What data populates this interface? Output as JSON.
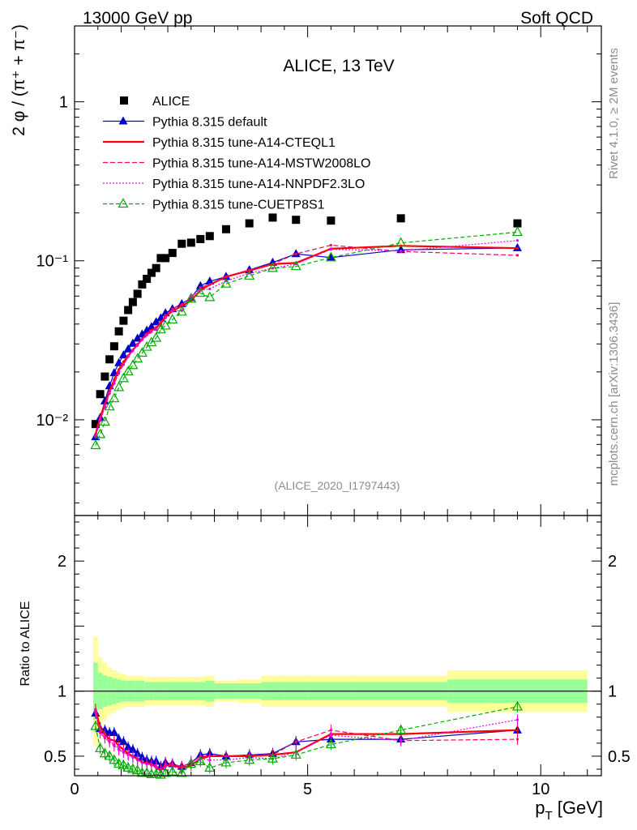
{
  "header": {
    "left": "13000 GeV pp",
    "right": "Soft QCD",
    "side_top": "Rivet 4.1.0, ≥ 2M events",
    "side_bottom": "mcplots.cern.ch [arXiv:1306.3436]"
  },
  "chart_data": [
    {
      "type": "scatter",
      "panel": "main",
      "title": "ALICE, 13 TeV",
      "watermark": "(ALICE_2020_I1797443)",
      "ylabel": "2 φ / (π⁺ + π⁻)",
      "yscale": "log",
      "ylim": [
        0.0025,
        3.0
      ],
      "xlim": [
        0,
        11.3
      ],
      "yticks": [
        {
          "value": 0.01,
          "label": "10⁻²"
        },
        {
          "value": 0.1,
          "label": "10⁻¹"
        },
        {
          "value": 1,
          "label": "1"
        }
      ],
      "legend_position": "top-left",
      "series": [
        {
          "name": "ALICE",
          "color": "#000000",
          "style": "square",
          "x": [
            0.45,
            0.55,
            0.65,
            0.75,
            0.85,
            0.95,
            1.05,
            1.15,
            1.25,
            1.35,
            1.45,
            1.55,
            1.65,
            1.75,
            1.85,
            1.95,
            2.1,
            2.3,
            2.5,
            2.7,
            2.9,
            3.25,
            3.75,
            4.25,
            4.75,
            5.5,
            7.0,
            9.5
          ],
          "y": [
            0.0094,
            0.0145,
            0.0187,
            0.024,
            0.029,
            0.036,
            0.042,
            0.049,
            0.055,
            0.062,
            0.071,
            0.077,
            0.084,
            0.09,
            0.104,
            0.104,
            0.112,
            0.128,
            0.13,
            0.137,
            0.143,
            0.158,
            0.172,
            0.187,
            0.181,
            0.179,
            0.185,
            0.172
          ]
        },
        {
          "name": "Pythia 8.315 default",
          "color": "#0000c8",
          "style": "solid-triangle",
          "x": [
            0.45,
            0.55,
            0.65,
            0.75,
            0.85,
            0.95,
            1.05,
            1.15,
            1.25,
            1.35,
            1.45,
            1.55,
            1.65,
            1.75,
            1.85,
            1.95,
            2.1,
            2.3,
            2.5,
            2.7,
            2.9,
            3.25,
            3.75,
            4.25,
            4.75,
            5.5,
            7.0,
            9.5
          ],
          "y": [
            0.0078,
            0.0103,
            0.0131,
            0.0163,
            0.0197,
            0.0228,
            0.0255,
            0.0278,
            0.0302,
            0.0325,
            0.0345,
            0.0365,
            0.0384,
            0.0412,
            0.0436,
            0.0469,
            0.0498,
            0.0536,
            0.0586,
            0.0695,
            0.0742,
            0.0795,
            0.0876,
            0.0975,
            0.1105,
            0.1048,
            0.1172,
            0.1204
          ]
        },
        {
          "name": "Pythia 8.315 tune-A14-CTEQL1",
          "color": "#ff0000",
          "style": "solid-line",
          "x": [
            0.45,
            0.55,
            0.65,
            0.75,
            0.85,
            0.95,
            1.05,
            1.15,
            1.25,
            1.35,
            1.45,
            1.55,
            1.65,
            1.75,
            1.85,
            1.95,
            2.1,
            2.3,
            2.5,
            2.7,
            2.9,
            3.25,
            3.75,
            4.25,
            4.75,
            5.5,
            7.0,
            9.5
          ],
          "y": [
            0.0081,
            0.0104,
            0.0125,
            0.0151,
            0.0179,
            0.0207,
            0.0231,
            0.0253,
            0.0275,
            0.0297,
            0.0322,
            0.0348,
            0.0366,
            0.0378,
            0.0405,
            0.0444,
            0.0483,
            0.052,
            0.0564,
            0.0652,
            0.0708,
            0.0794,
            0.0868,
            0.0954,
            0.0969,
            0.1191,
            0.1242,
            0.1202
          ]
        },
        {
          "name": "Pythia 8.315 tune-A14-MSTW2008LO",
          "color": "#ff0066",
          "style": "dashed-line",
          "x": [
            0.45,
            0.55,
            0.65,
            0.75,
            0.85,
            0.95,
            1.05,
            1.15,
            1.25,
            1.35,
            1.45,
            1.55,
            1.65,
            1.75,
            1.85,
            1.95,
            2.1,
            2.3,
            2.5,
            2.7,
            2.9,
            3.25,
            3.75,
            4.25,
            4.75,
            5.5,
            7.0,
            9.5
          ],
          "y": [
            0.0078,
            0.0099,
            0.012,
            0.0146,
            0.0169,
            0.0196,
            0.0222,
            0.0249,
            0.0275,
            0.0299,
            0.032,
            0.0342,
            0.0358,
            0.0382,
            0.0415,
            0.0455,
            0.0498,
            0.0532,
            0.0588,
            0.0679,
            0.0712,
            0.0794,
            0.0876,
            0.0954,
            0.1105,
            0.1253,
            0.1145,
            0.1082
          ]
        },
        {
          "name": "Pythia 8.315 tune-A14-NNPDF2.3LO",
          "color": "#ee00ee",
          "style": "dotted-line",
          "x": [
            0.45,
            0.55,
            0.65,
            0.75,
            0.85,
            0.95,
            1.05,
            1.15,
            1.25,
            1.35,
            1.45,
            1.55,
            1.65,
            1.75,
            1.85,
            1.95,
            2.1,
            2.3,
            2.5,
            2.7,
            2.9,
            3.25,
            3.75,
            4.25,
            4.75,
            5.5,
            7.0,
            9.5
          ],
          "y": [
            0.0079,
            0.0101,
            0.0121,
            0.0148,
            0.0172,
            0.02,
            0.0224,
            0.0249,
            0.0271,
            0.0293,
            0.0319,
            0.0341,
            0.0361,
            0.0368,
            0.039,
            0.0437,
            0.0483,
            0.0486,
            0.0602,
            0.0652,
            0.0665,
            0.0746,
            0.0835,
            0.0898,
            0.0955,
            0.1181,
            0.1154,
            0.1341
          ]
        },
        {
          "name": "Pythia 8.315 tune-CUETP8S1",
          "color": "#00aa00",
          "style": "dashed-open-triangle",
          "x": [
            0.45,
            0.55,
            0.65,
            0.75,
            0.85,
            0.95,
            1.05,
            1.15,
            1.25,
            1.35,
            1.45,
            1.55,
            1.65,
            1.75,
            1.85,
            1.95,
            2.1,
            2.3,
            2.5,
            2.7,
            2.9,
            3.25,
            3.75,
            4.25,
            4.75,
            5.5,
            7.0,
            9.5
          ],
          "y": [
            0.0069,
            0.0081,
            0.0097,
            0.0121,
            0.0136,
            0.016,
            0.0182,
            0.0201,
            0.022,
            0.0242,
            0.0263,
            0.0287,
            0.0306,
            0.0327,
            0.0369,
            0.039,
            0.0426,
            0.0477,
            0.0576,
            0.0627,
            0.0589,
            0.0716,
            0.0804,
            0.0898,
            0.0922,
            0.1048,
            0.1295,
            0.1514
          ]
        }
      ]
    },
    {
      "type": "line",
      "panel": "ratio",
      "ylabel": "Ratio to ALICE",
      "xlabel": "p_T [GeV]",
      "ylim": [
        0.35,
        2.35
      ],
      "xlim": [
        0,
        11.3
      ],
      "yticks": [
        0.5,
        1,
        2
      ],
      "xticks": [
        0,
        5,
        10
      ],
      "reference_band": {
        "x_edges": [
          0.4,
          0.5,
          0.6,
          0.7,
          0.8,
          0.9,
          1.0,
          1.1,
          1.2,
          1.3,
          1.4,
          1.5,
          1.6,
          1.7,
          1.8,
          1.9,
          2.0,
          2.2,
          2.4,
          2.6,
          2.8,
          3.0,
          3.5,
          4.0,
          4.5,
          5.0,
          6.0,
          8.0,
          11.0
        ],
        "stat_syst_halfwidth": [
          0.42,
          0.26,
          0.22,
          0.18,
          0.16,
          0.14,
          0.13,
          0.12,
          0.12,
          0.12,
          0.12,
          0.11,
          0.11,
          0.11,
          0.11,
          0.11,
          0.11,
          0.11,
          0.11,
          0.11,
          0.12,
          0.08,
          0.09,
          0.12,
          0.12,
          0.12,
          0.12,
          0.16
        ],
        "syst_halfwidth": [
          0.22,
          0.14,
          0.12,
          0.11,
          0.1,
          0.09,
          0.08,
          0.08,
          0.08,
          0.08,
          0.08,
          0.07,
          0.07,
          0.07,
          0.07,
          0.07,
          0.07,
          0.07,
          0.07,
          0.07,
          0.08,
          0.06,
          0.06,
          0.07,
          0.07,
          0.07,
          0.07,
          0.09
        ]
      },
      "x": [
        0.45,
        0.55,
        0.65,
        0.75,
        0.85,
        0.95,
        1.05,
        1.15,
        1.25,
        1.35,
        1.45,
        1.55,
        1.65,
        1.75,
        1.85,
        1.95,
        2.1,
        2.3,
        2.5,
        2.7,
        2.9,
        3.25,
        3.75,
        4.25,
        4.75,
        5.5,
        7.0,
        9.5
      ],
      "series": [
        {
          "name": "Pythia 8.315 default",
          "color": "#0000c8",
          "values": [
            0.83,
            0.71,
            0.7,
            0.68,
            0.68,
            0.63,
            0.61,
            0.57,
            0.55,
            0.52,
            0.49,
            0.47,
            0.46,
            0.46,
            0.42,
            0.45,
            0.44,
            0.42,
            0.45,
            0.51,
            0.52,
            0.5,
            0.51,
            0.52,
            0.61,
            0.63,
            0.63,
            0.7
          ]
        },
        {
          "name": "Pythia 8.315 tune-A14-CTEQL1",
          "color": "#ff0000",
          "values": [
            0.86,
            0.72,
            0.67,
            0.63,
            0.62,
            0.58,
            0.55,
            0.52,
            0.5,
            0.48,
            0.45,
            0.45,
            0.44,
            0.42,
            0.39,
            0.43,
            0.43,
            0.41,
            0.43,
            0.48,
            0.5,
            0.5,
            0.5,
            0.51,
            0.53,
            0.67,
            0.67,
            0.7
          ]
        },
        {
          "name": "Pythia 8.315 tune-A14-MSTW2008LO",
          "color": "#ff0066",
          "values": [
            0.83,
            0.68,
            0.64,
            0.61,
            0.58,
            0.55,
            0.53,
            0.51,
            0.5,
            0.48,
            0.45,
            0.44,
            0.43,
            0.42,
            0.4,
            0.44,
            0.44,
            0.42,
            0.45,
            0.5,
            0.5,
            0.5,
            0.51,
            0.51,
            0.61,
            0.7,
            0.62,
            0.63
          ]
        },
        {
          "name": "Pythia 8.315 tune-A14-NNPDF2.3LO",
          "color": "#ee00ee",
          "values": [
            0.84,
            0.7,
            0.65,
            0.62,
            0.59,
            0.56,
            0.53,
            0.51,
            0.49,
            0.47,
            0.45,
            0.44,
            0.43,
            0.41,
            0.38,
            0.42,
            0.43,
            0.38,
            0.46,
            0.48,
            0.47,
            0.47,
            0.49,
            0.48,
            0.53,
            0.66,
            0.62,
            0.78
          ]
        },
        {
          "name": "Pythia 8.315 tune-CUETP8S1",
          "color": "#00aa00",
          "values": [
            0.73,
            0.56,
            0.52,
            0.5,
            0.47,
            0.44,
            0.43,
            0.41,
            0.4,
            0.39,
            0.37,
            0.37,
            0.36,
            0.36,
            0.35,
            0.37,
            0.38,
            0.37,
            0.44,
            0.46,
            0.41,
            0.45,
            0.47,
            0.48,
            0.51,
            0.59,
            0.7,
            0.88
          ]
        }
      ]
    }
  ]
}
